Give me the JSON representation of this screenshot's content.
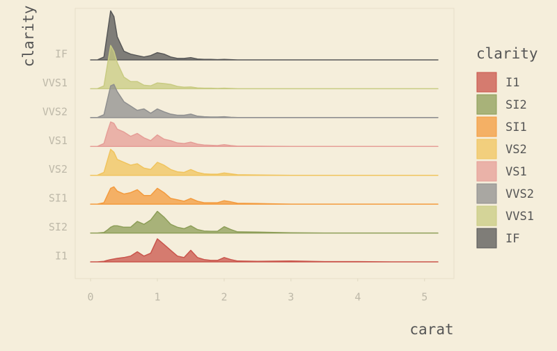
{
  "chart_data": {
    "type": "ridgeline",
    "x_label": "carat",
    "y_label": "clarity",
    "legend_title": "clarity",
    "xlim": [
      -0.23,
      5.44
    ],
    "xticks": [
      0,
      1,
      2,
      3,
      4,
      5
    ],
    "x": [
      0,
      0.1,
      0.2,
      0.25,
      0.3,
      0.35,
      0.4,
      0.5,
      0.6,
      0.7,
      0.8,
      0.9,
      1.0,
      1.1,
      1.2,
      1.3,
      1.4,
      1.5,
      1.6,
      1.7,
      1.8,
      1.9,
      2.0,
      2.1,
      2.2,
      2.5,
      3.0,
      3.5,
      4.0,
      4.5,
      5.2
    ],
    "series": [
      {
        "name": "I1",
        "color": "#c9544b",
        "values": [
          0,
          0,
          0.02,
          0.05,
          0.08,
          0.1,
          0.12,
          0.15,
          0.2,
          0.35,
          0.2,
          0.3,
          0.8,
          0.6,
          0.4,
          0.2,
          0.15,
          0.4,
          0.15,
          0.08,
          0.05,
          0.05,
          0.15,
          0.08,
          0.03,
          0.02,
          0.03,
          0.01,
          0.01,
          0,
          0
        ]
      },
      {
        "name": "SI2",
        "color": "#8d9e58",
        "values": [
          0,
          0,
          0.02,
          0.1,
          0.2,
          0.25,
          0.25,
          0.2,
          0.2,
          0.4,
          0.3,
          0.45,
          0.75,
          0.55,
          0.3,
          0.2,
          0.15,
          0.25,
          0.12,
          0.07,
          0.06,
          0.06,
          0.22,
          0.12,
          0.04,
          0.03,
          0.01,
          0,
          0,
          0,
          0
        ]
      },
      {
        "name": "SI1",
        "color": "#f39b3e",
        "values": [
          0,
          0,
          0.05,
          0.3,
          0.55,
          0.6,
          0.45,
          0.35,
          0.4,
          0.5,
          0.3,
          0.3,
          0.55,
          0.4,
          0.2,
          0.15,
          0.1,
          0.2,
          0.1,
          0.05,
          0.05,
          0.05,
          0.12,
          0.08,
          0.03,
          0.02,
          0,
          0,
          0,
          0,
          0
        ]
      },
      {
        "name": "VS2",
        "color": "#f0c45e",
        "values": [
          0,
          0,
          0.1,
          0.5,
          0.9,
          0.8,
          0.55,
          0.45,
          0.35,
          0.4,
          0.25,
          0.2,
          0.45,
          0.35,
          0.2,
          0.12,
          0.1,
          0.2,
          0.1,
          0.05,
          0.04,
          0.04,
          0.08,
          0.05,
          0.02,
          0.01,
          0,
          0,
          0,
          0,
          0
        ]
      },
      {
        "name": "VS1",
        "color": "#e59e97",
        "values": [
          0,
          0,
          0.1,
          0.5,
          0.85,
          0.8,
          0.6,
          0.5,
          0.35,
          0.45,
          0.3,
          0.2,
          0.4,
          0.25,
          0.2,
          0.12,
          0.1,
          0.15,
          0.08,
          0.05,
          0.04,
          0.03,
          0.06,
          0.03,
          0.01,
          0.01,
          0,
          0,
          0,
          0,
          0
        ]
      },
      {
        "name": "VVS2",
        "color": "#8f8f8f",
        "values": [
          0,
          0,
          0.1,
          0.6,
          1.1,
          1.15,
          0.9,
          0.55,
          0.4,
          0.25,
          0.3,
          0.15,
          0.3,
          0.2,
          0.12,
          0.08,
          0.08,
          0.12,
          0.05,
          0.03,
          0.02,
          0.02,
          0.03,
          0.01,
          0,
          0,
          0,
          0,
          0,
          0,
          0
        ]
      },
      {
        "name": "VVS1",
        "color": "#c8cb82",
        "values": [
          0,
          0,
          0.1,
          0.8,
          1.5,
          1.3,
          0.9,
          0.4,
          0.25,
          0.25,
          0.12,
          0.1,
          0.2,
          0.18,
          0.15,
          0.08,
          0.05,
          0.06,
          0.03,
          0.02,
          0.02,
          0.01,
          0.02,
          0.01,
          0,
          0,
          0,
          0,
          0,
          0,
          0
        ]
      },
      {
        "name": "IF",
        "color": "#575757",
        "values": [
          0,
          0,
          0.1,
          0.9,
          1.7,
          1.5,
          0.8,
          0.3,
          0.2,
          0.15,
          0.1,
          0.15,
          0.25,
          0.2,
          0.1,
          0.05,
          0.05,
          0.08,
          0.03,
          0.02,
          0.02,
          0.01,
          0.02,
          0.01,
          0,
          0,
          0,
          0,
          0,
          0,
          0
        ]
      }
    ]
  }
}
